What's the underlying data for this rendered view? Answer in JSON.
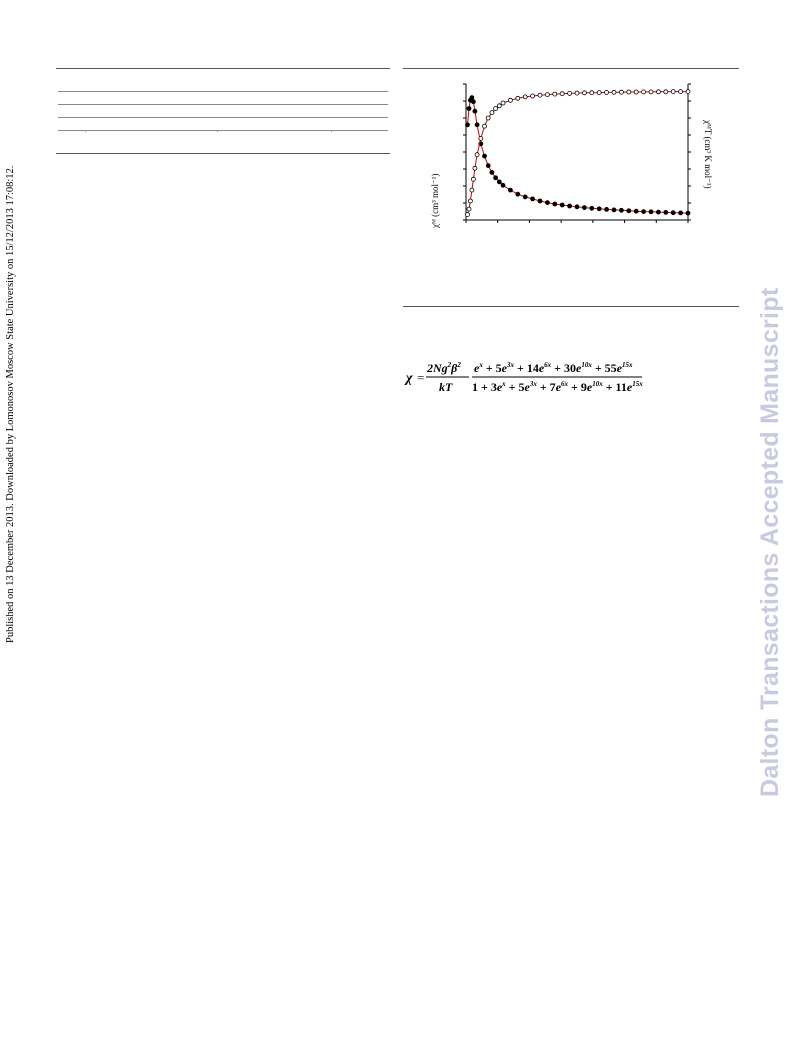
{
  "sidebar": {
    "published_line": "Published on 13 December 2013. Downloaded by Lomonosov Moscow State University on 15/12/2013 17:08:12."
  },
  "watermark": {
    "text": "Dalton Transactions Accepted Manuscript",
    "color": "#c8cbe0"
  },
  "figure": {
    "y_left_label": "χᴹ (cm³ mol⁻¹)",
    "y_right_label": "χᴹT (cm³ K mol⁻¹)",
    "colors": {
      "markers": "#000000",
      "fit_line": "#cc0000"
    }
  },
  "chart_data": {
    "type": "scatter",
    "title": "",
    "xlabel": "",
    "ylabel": "χᴹ (cm³ mol⁻¹)",
    "y2label": "χᴹT (cm³ K mol⁻¹)",
    "xlim": [
      0,
      300
    ],
    "ylim": [
      0,
      1
    ],
    "y2lim": [
      0,
      1
    ],
    "grid": false,
    "note_units": "axis tick values not printed; values given as fraction of axis range",
    "series": [
      {
        "marker": "filled-circle",
        "axis": "left",
        "x": [
          2,
          4,
          6,
          8,
          10,
          12,
          15,
          20,
          25,
          30,
          35,
          40,
          45,
          50,
          60,
          70,
          80,
          90,
          100,
          110,
          120,
          130,
          140,
          150,
          160,
          170,
          180,
          190,
          200,
          210,
          220,
          230,
          240,
          250,
          260,
          270,
          280,
          290,
          300
        ],
        "y": [
          0.7,
          0.82,
          0.88,
          0.9,
          0.87,
          0.8,
          0.7,
          0.56,
          0.47,
          0.4,
          0.35,
          0.31,
          0.28,
          0.255,
          0.22,
          0.19,
          0.17,
          0.155,
          0.14,
          0.128,
          0.118,
          0.11,
          0.103,
          0.097,
          0.091,
          0.086,
          0.082,
          0.078,
          0.074,
          0.071,
          0.068,
          0.065,
          0.062,
          0.06,
          0.058,
          0.056,
          0.054,
          0.052,
          0.05
        ]
      },
      {
        "marker": "open-circle",
        "axis": "right",
        "x": [
          2,
          4,
          6,
          8,
          10,
          12,
          15,
          20,
          25,
          30,
          35,
          40,
          45,
          50,
          60,
          70,
          80,
          90,
          100,
          110,
          120,
          130,
          140,
          150,
          160,
          170,
          180,
          190,
          200,
          210,
          220,
          230,
          240,
          250,
          260,
          270,
          280,
          290,
          300
        ],
        "y": [
          0.04,
          0.08,
          0.14,
          0.22,
          0.3,
          0.38,
          0.48,
          0.6,
          0.69,
          0.75,
          0.79,
          0.82,
          0.84,
          0.86,
          0.88,
          0.895,
          0.905,
          0.912,
          0.918,
          0.922,
          0.926,
          0.929,
          0.931,
          0.933,
          0.935,
          0.936,
          0.937,
          0.938,
          0.939,
          0.94,
          0.941,
          0.941,
          0.942,
          0.942,
          0.943,
          0.943,
          0.944,
          0.944,
          0.944
        ]
      }
    ]
  }
}
